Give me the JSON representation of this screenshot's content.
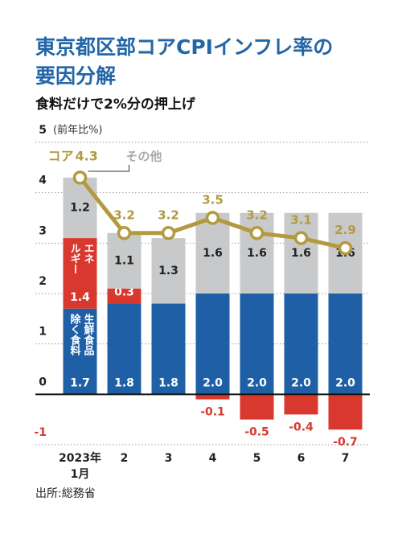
{
  "chart_data": {
    "type": "stacked-bar-line",
    "title": "東京都区部コアCPIインフレ率の\n要因分解",
    "subtitle": "食料だけで2%分の押上げ",
    "y_label": "(前年比%)",
    "source": "出所:総務省",
    "categories": [
      "2023年\n1月",
      "2",
      "3",
      "4",
      "5",
      "6",
      "7"
    ],
    "series": [
      {
        "name": "生鮮食品\n除く食料",
        "color": "#1f5fa6",
        "values": [
          1.7,
          1.8,
          1.8,
          2.0,
          2.0,
          2.0,
          2.0
        ],
        "value_labels": [
          "1.7",
          "1.8",
          "1.8",
          "2.0",
          "2.0",
          "2.0",
          "2.0"
        ]
      },
      {
        "name": "エネ\nルギー",
        "color": "#d9382e",
        "values": [
          1.4,
          0.3,
          null,
          -0.1,
          -0.5,
          -0.4,
          -0.7
        ]
      },
      {
        "name": "その他",
        "color": "#c8c9cb",
        "values": [
          1.2,
          1.1,
          1.3,
          1.6,
          1.6,
          1.6,
          1.6
        ]
      },
      {
        "name": "コア",
        "color": "#b39a3f",
        "kind": "line",
        "values": [
          4.3,
          3.2,
          3.2,
          3.5,
          3.2,
          3.1,
          2.9
        ]
      }
    ],
    "ylim": [
      -1,
      5
    ],
    "yticks": [
      -1,
      0,
      1,
      2,
      3,
      4,
      5
    ],
    "grid": true
  }
}
